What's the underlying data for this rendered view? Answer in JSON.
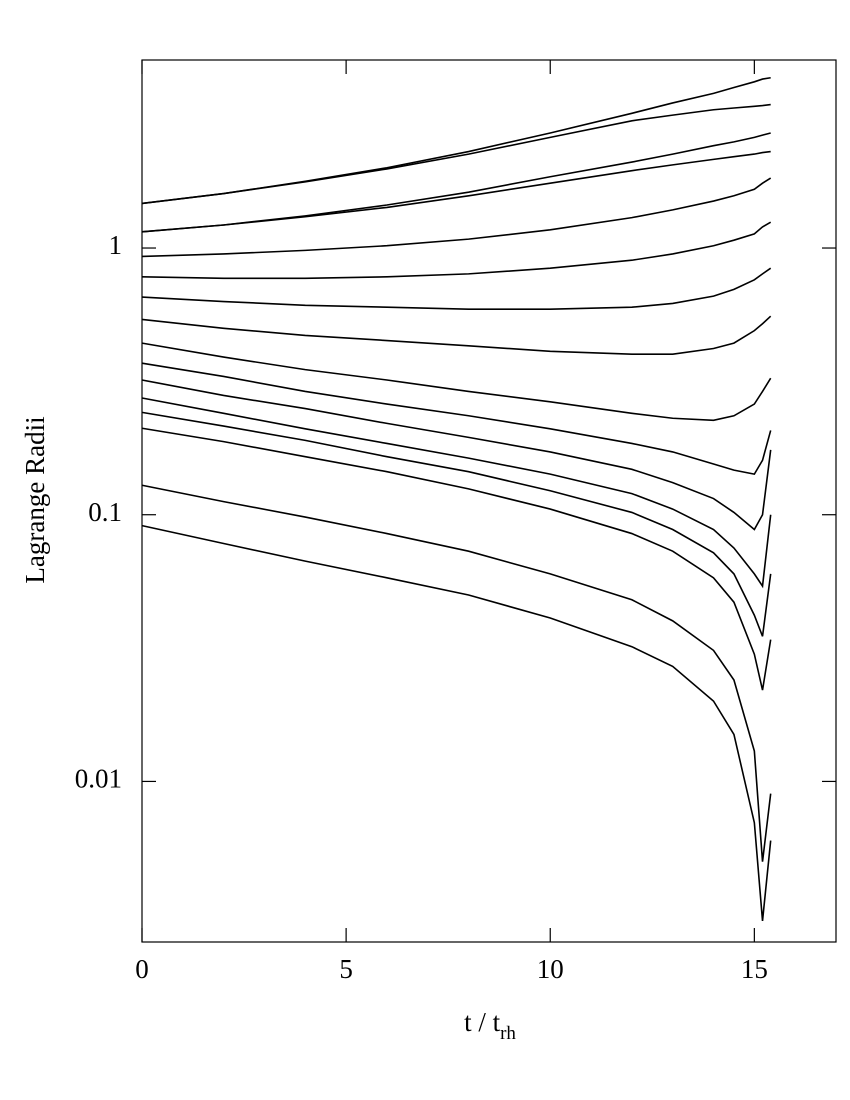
{
  "chart_data": {
    "type": "line",
    "ylabel": "Lagrange Radii",
    "xlabel": "t / t",
    "xlabel_sub": "rh",
    "yscale": "log",
    "grid": false,
    "xlim": [
      0,
      17
    ],
    "ylim": [
      0.0025,
      5.07
    ],
    "xticks": [
      0,
      5,
      10,
      15
    ],
    "yticks": [
      0.01,
      0.1,
      1
    ],
    "x": [
      0,
      2,
      4,
      6,
      8,
      10,
      12,
      13,
      14,
      14.5,
      15,
      15.2,
      15.4
    ],
    "series": [
      {
        "color": "#000000",
        "values": [
          1.47,
          1.6,
          1.78,
          2.0,
          2.3,
          2.7,
          3.2,
          3.5,
          3.8,
          4.0,
          4.2,
          4.3,
          4.35
        ]
      },
      {
        "color": "#000000",
        "values": [
          1.47,
          1.6,
          1.77,
          1.98,
          2.25,
          2.6,
          3.0,
          3.15,
          3.3,
          3.35,
          3.4,
          3.42,
          3.45
        ]
      },
      {
        "color": "#000000",
        "values": [
          1.15,
          1.22,
          1.32,
          1.45,
          1.62,
          1.85,
          2.1,
          2.25,
          2.42,
          2.5,
          2.6,
          2.65,
          2.7
        ]
      },
      {
        "color": "#000000",
        "values": [
          1.15,
          1.22,
          1.31,
          1.42,
          1.57,
          1.75,
          1.95,
          2.05,
          2.15,
          2.2,
          2.25,
          2.28,
          2.3
        ]
      },
      {
        "color": "#000000",
        "values": [
          0.93,
          0.95,
          0.98,
          1.02,
          1.08,
          1.17,
          1.3,
          1.39,
          1.5,
          1.57,
          1.66,
          1.75,
          1.83
        ]
      },
      {
        "color": "#000000",
        "values": [
          0.78,
          0.77,
          0.77,
          0.78,
          0.8,
          0.84,
          0.9,
          0.95,
          1.02,
          1.07,
          1.13,
          1.2,
          1.25
        ]
      },
      {
        "color": "#000000",
        "values": [
          0.655,
          0.63,
          0.61,
          0.6,
          0.59,
          0.59,
          0.6,
          0.62,
          0.66,
          0.7,
          0.76,
          0.8,
          0.84
        ]
      },
      {
        "color": "#000000",
        "values": [
          0.54,
          0.5,
          0.47,
          0.45,
          0.43,
          0.41,
          0.4,
          0.4,
          0.42,
          0.44,
          0.49,
          0.52,
          0.555
        ]
      },
      {
        "color": "#000000",
        "values": [
          0.44,
          0.39,
          0.35,
          0.32,
          0.29,
          0.265,
          0.24,
          0.23,
          0.226,
          0.235,
          0.26,
          0.29,
          0.325
        ]
      },
      {
        "color": "#000000",
        "values": [
          0.37,
          0.33,
          0.29,
          0.26,
          0.235,
          0.21,
          0.185,
          0.172,
          0.155,
          0.147,
          0.142,
          0.16,
          0.207
        ]
      },
      {
        "color": "#000000",
        "values": [
          0.32,
          0.28,
          0.25,
          0.22,
          0.195,
          0.172,
          0.148,
          0.132,
          0.115,
          0.102,
          0.088,
          0.1,
          0.175
        ]
      },
      {
        "color": "#000000",
        "values": [
          0.274,
          0.24,
          0.21,
          0.185,
          0.163,
          0.142,
          0.12,
          0.105,
          0.088,
          0.075,
          0.06,
          0.054,
          0.1
        ]
      },
      {
        "color": "#000000",
        "values": [
          0.242,
          0.215,
          0.19,
          0.165,
          0.145,
          0.123,
          0.102,
          0.088,
          0.072,
          0.06,
          0.042,
          0.035,
          0.06
        ]
      },
      {
        "color": "#000000",
        "values": [
          0.211,
          0.188,
          0.165,
          0.145,
          0.125,
          0.105,
          0.085,
          0.073,
          0.058,
          0.047,
          0.03,
          0.022,
          0.034
        ]
      },
      {
        "color": "#000000",
        "values": [
          0.129,
          0.112,
          0.098,
          0.085,
          0.073,
          0.06,
          0.048,
          0.04,
          0.031,
          0.024,
          0.013,
          0.005,
          0.009
        ]
      },
      {
        "color": "#000000",
        "values": [
          0.091,
          0.078,
          0.067,
          0.058,
          0.05,
          0.041,
          0.032,
          0.027,
          0.02,
          0.015,
          0.007,
          0.003,
          0.006
        ]
      }
    ]
  }
}
